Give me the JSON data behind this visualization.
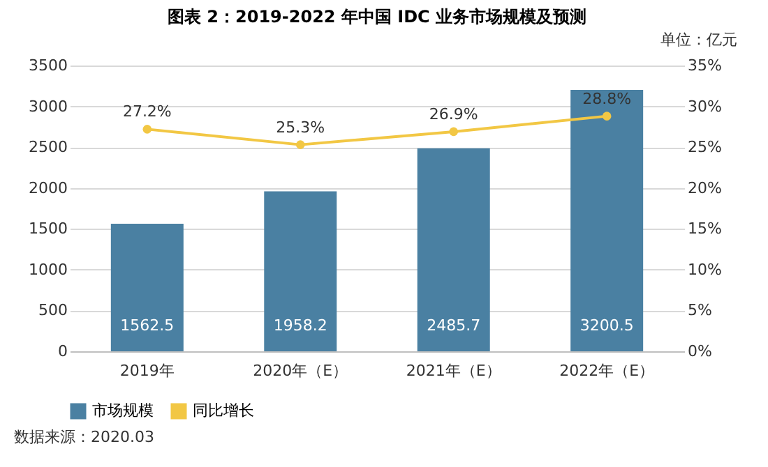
{
  "chart_data": {
    "type": "bar",
    "title": "图表 2：2019-2022 年中国 IDC 业务市场规模及预测",
    "categories": [
      "2019年",
      "2020年（E）",
      "2021年（E）",
      "2022年（E）"
    ],
    "series": [
      {
        "name": "市场规模",
        "color": "#4a80a2",
        "values": [
          1562.5,
          1958.2,
          2485.7,
          3200.5
        ]
      },
      {
        "name": "同比增长",
        "type": "line",
        "axis": "y2",
        "color": "#f2c744",
        "marker": "circle",
        "line_style": "solid",
        "values": [
          27.2,
          25.3,
          26.9,
          28.8
        ],
        "value_labels": [
          "27.2%",
          "25.3%",
          "26.9%",
          "28.8%"
        ]
      }
    ],
    "ylim": [
      0,
      3500
    ],
    "yticks": [
      0,
      500,
      1000,
      1500,
      2000,
      2500,
      3000,
      3500
    ],
    "y2lim": [
      0,
      35
    ],
    "y2ticks": [
      {
        "value": 0,
        "label": "0%"
      },
      {
        "value": 5,
        "label": "5%"
      },
      {
        "value": 10,
        "label": "10%"
      },
      {
        "value": 15,
        "label": "15%"
      },
      {
        "value": 20,
        "label": "20%"
      },
      {
        "value": 25,
        "label": "25%"
      },
      {
        "value": 30,
        "label": "30%"
      },
      {
        "value": 35,
        "label": "35%"
      }
    ],
    "data_labels": true,
    "grid": "y",
    "legend": "bottom",
    "annotations": [
      "单位：亿元",
      "数据来源：2020.03"
    ]
  }
}
